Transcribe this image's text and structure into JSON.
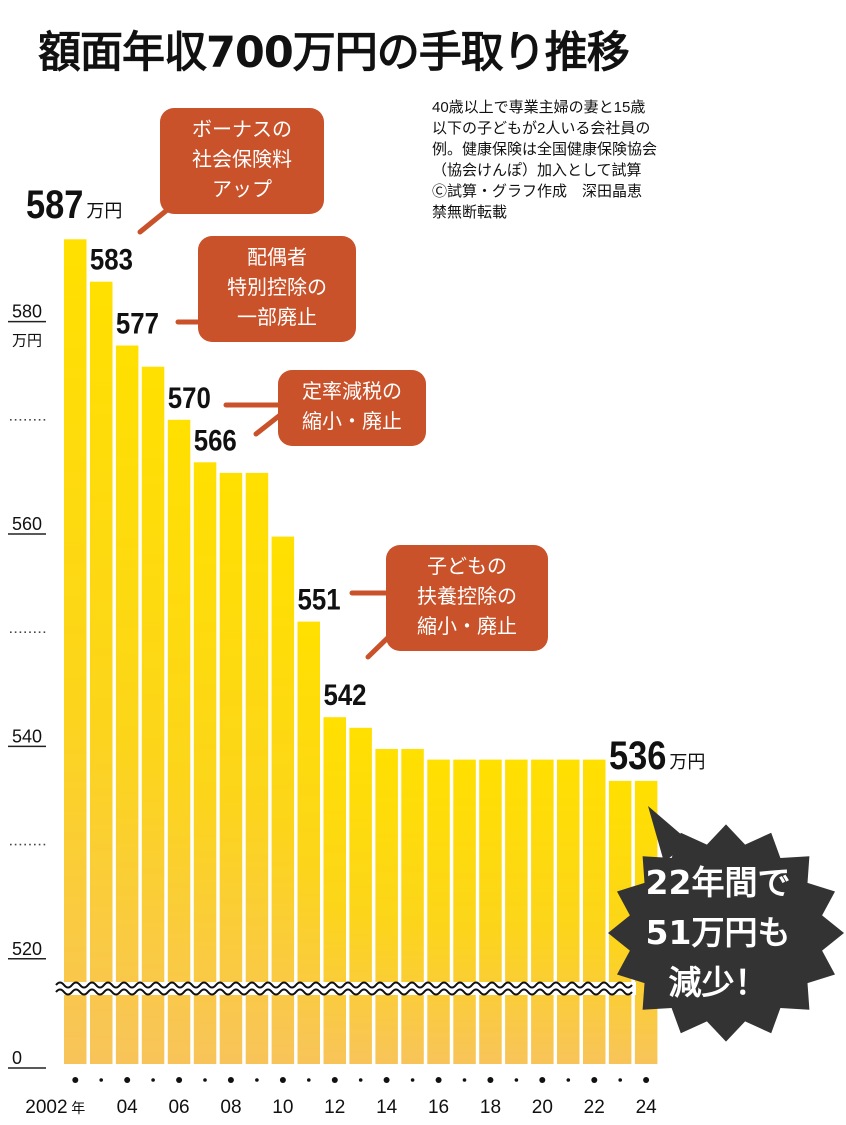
{
  "title": "額面年収700万円の手取り推移",
  "note": [
    "40歳以上で専業主婦の妻と15歳",
    "以下の子どもが2人いる会社員の",
    "例。健康保険は全国健康保険協会",
    "（協会けんぽ）加入として試算",
    "Ⓒ試算・グラフ作成　深田晶恵",
    "禁無断転載"
  ],
  "callouts": {
    "bonus": [
      "ボーナスの",
      "社会保険料",
      "アップ"
    ],
    "spouse": [
      "配偶者",
      "特別控除の",
      "一部廃止"
    ],
    "teiritsu": [
      "定率減税の",
      "縮小・廃止"
    ],
    "kodomo": [
      "子どもの",
      "扶養控除の",
      "縮小・廃止"
    ]
  },
  "burst": [
    "22年間で",
    "51万円も",
    "減少！"
  ],
  "colors": {
    "bar_top": "#ffe000",
    "bar_bottom": "#f8c45a",
    "callout": "#c9522a",
    "burst": "#333333"
  },
  "chart_data": {
    "type": "bar",
    "x": [
      2002,
      2003,
      2004,
      2005,
      2006,
      2007,
      2008,
      2009,
      2010,
      2011,
      2012,
      2013,
      2014,
      2015,
      2016,
      2017,
      2018,
      2019,
      2020,
      2021,
      2022,
      2023,
      2024
    ],
    "values": [
      587,
      583,
      577,
      575,
      570,
      566,
      565,
      565,
      559,
      551,
      542,
      541,
      539,
      539,
      538,
      538,
      538,
      538,
      538,
      538,
      538,
      536,
      536
    ],
    "unit": "万円",
    "y_axis_break": true,
    "ylim": [
      515,
      590
    ],
    "yticks": [
      {
        "value": 580,
        "label": "580",
        "unit": "万円"
      },
      {
        "value": 570,
        "label": ""
      },
      {
        "value": 560,
        "label": "560"
      },
      {
        "value": 550,
        "label": ""
      },
      {
        "value": 540,
        "label": "540"
      },
      {
        "value": 530,
        "label": ""
      },
      {
        "value": 520,
        "label": "520"
      },
      {
        "value": 0,
        "label": "0"
      }
    ],
    "xticks": [
      {
        "x": 2002,
        "label": "2002",
        "unit": "年"
      },
      {
        "x": 2004,
        "label": "04"
      },
      {
        "x": 2006,
        "label": "06"
      },
      {
        "x": 2008,
        "label": "08"
      },
      {
        "x": 2010,
        "label": "10"
      },
      {
        "x": 2012,
        "label": "12"
      },
      {
        "x": 2014,
        "label": "14"
      },
      {
        "x": 2016,
        "label": "16"
      },
      {
        "x": 2018,
        "label": "18"
      },
      {
        "x": 2020,
        "label": "20"
      },
      {
        "x": 2022,
        "label": "22"
      },
      {
        "x": 2024,
        "label": "24"
      }
    ],
    "data_labels": [
      {
        "x": 2002,
        "text": "587",
        "unit": "万円"
      },
      {
        "x": 2003,
        "text": "583"
      },
      {
        "x": 2004,
        "text": "577"
      },
      {
        "x": 2006,
        "text": "570"
      },
      {
        "x": 2007,
        "text": "566"
      },
      {
        "x": 2011,
        "text": "551"
      },
      {
        "x": 2012,
        "text": "542"
      },
      {
        "x": 2023,
        "text": "536",
        "unit": "万円"
      }
    ]
  }
}
